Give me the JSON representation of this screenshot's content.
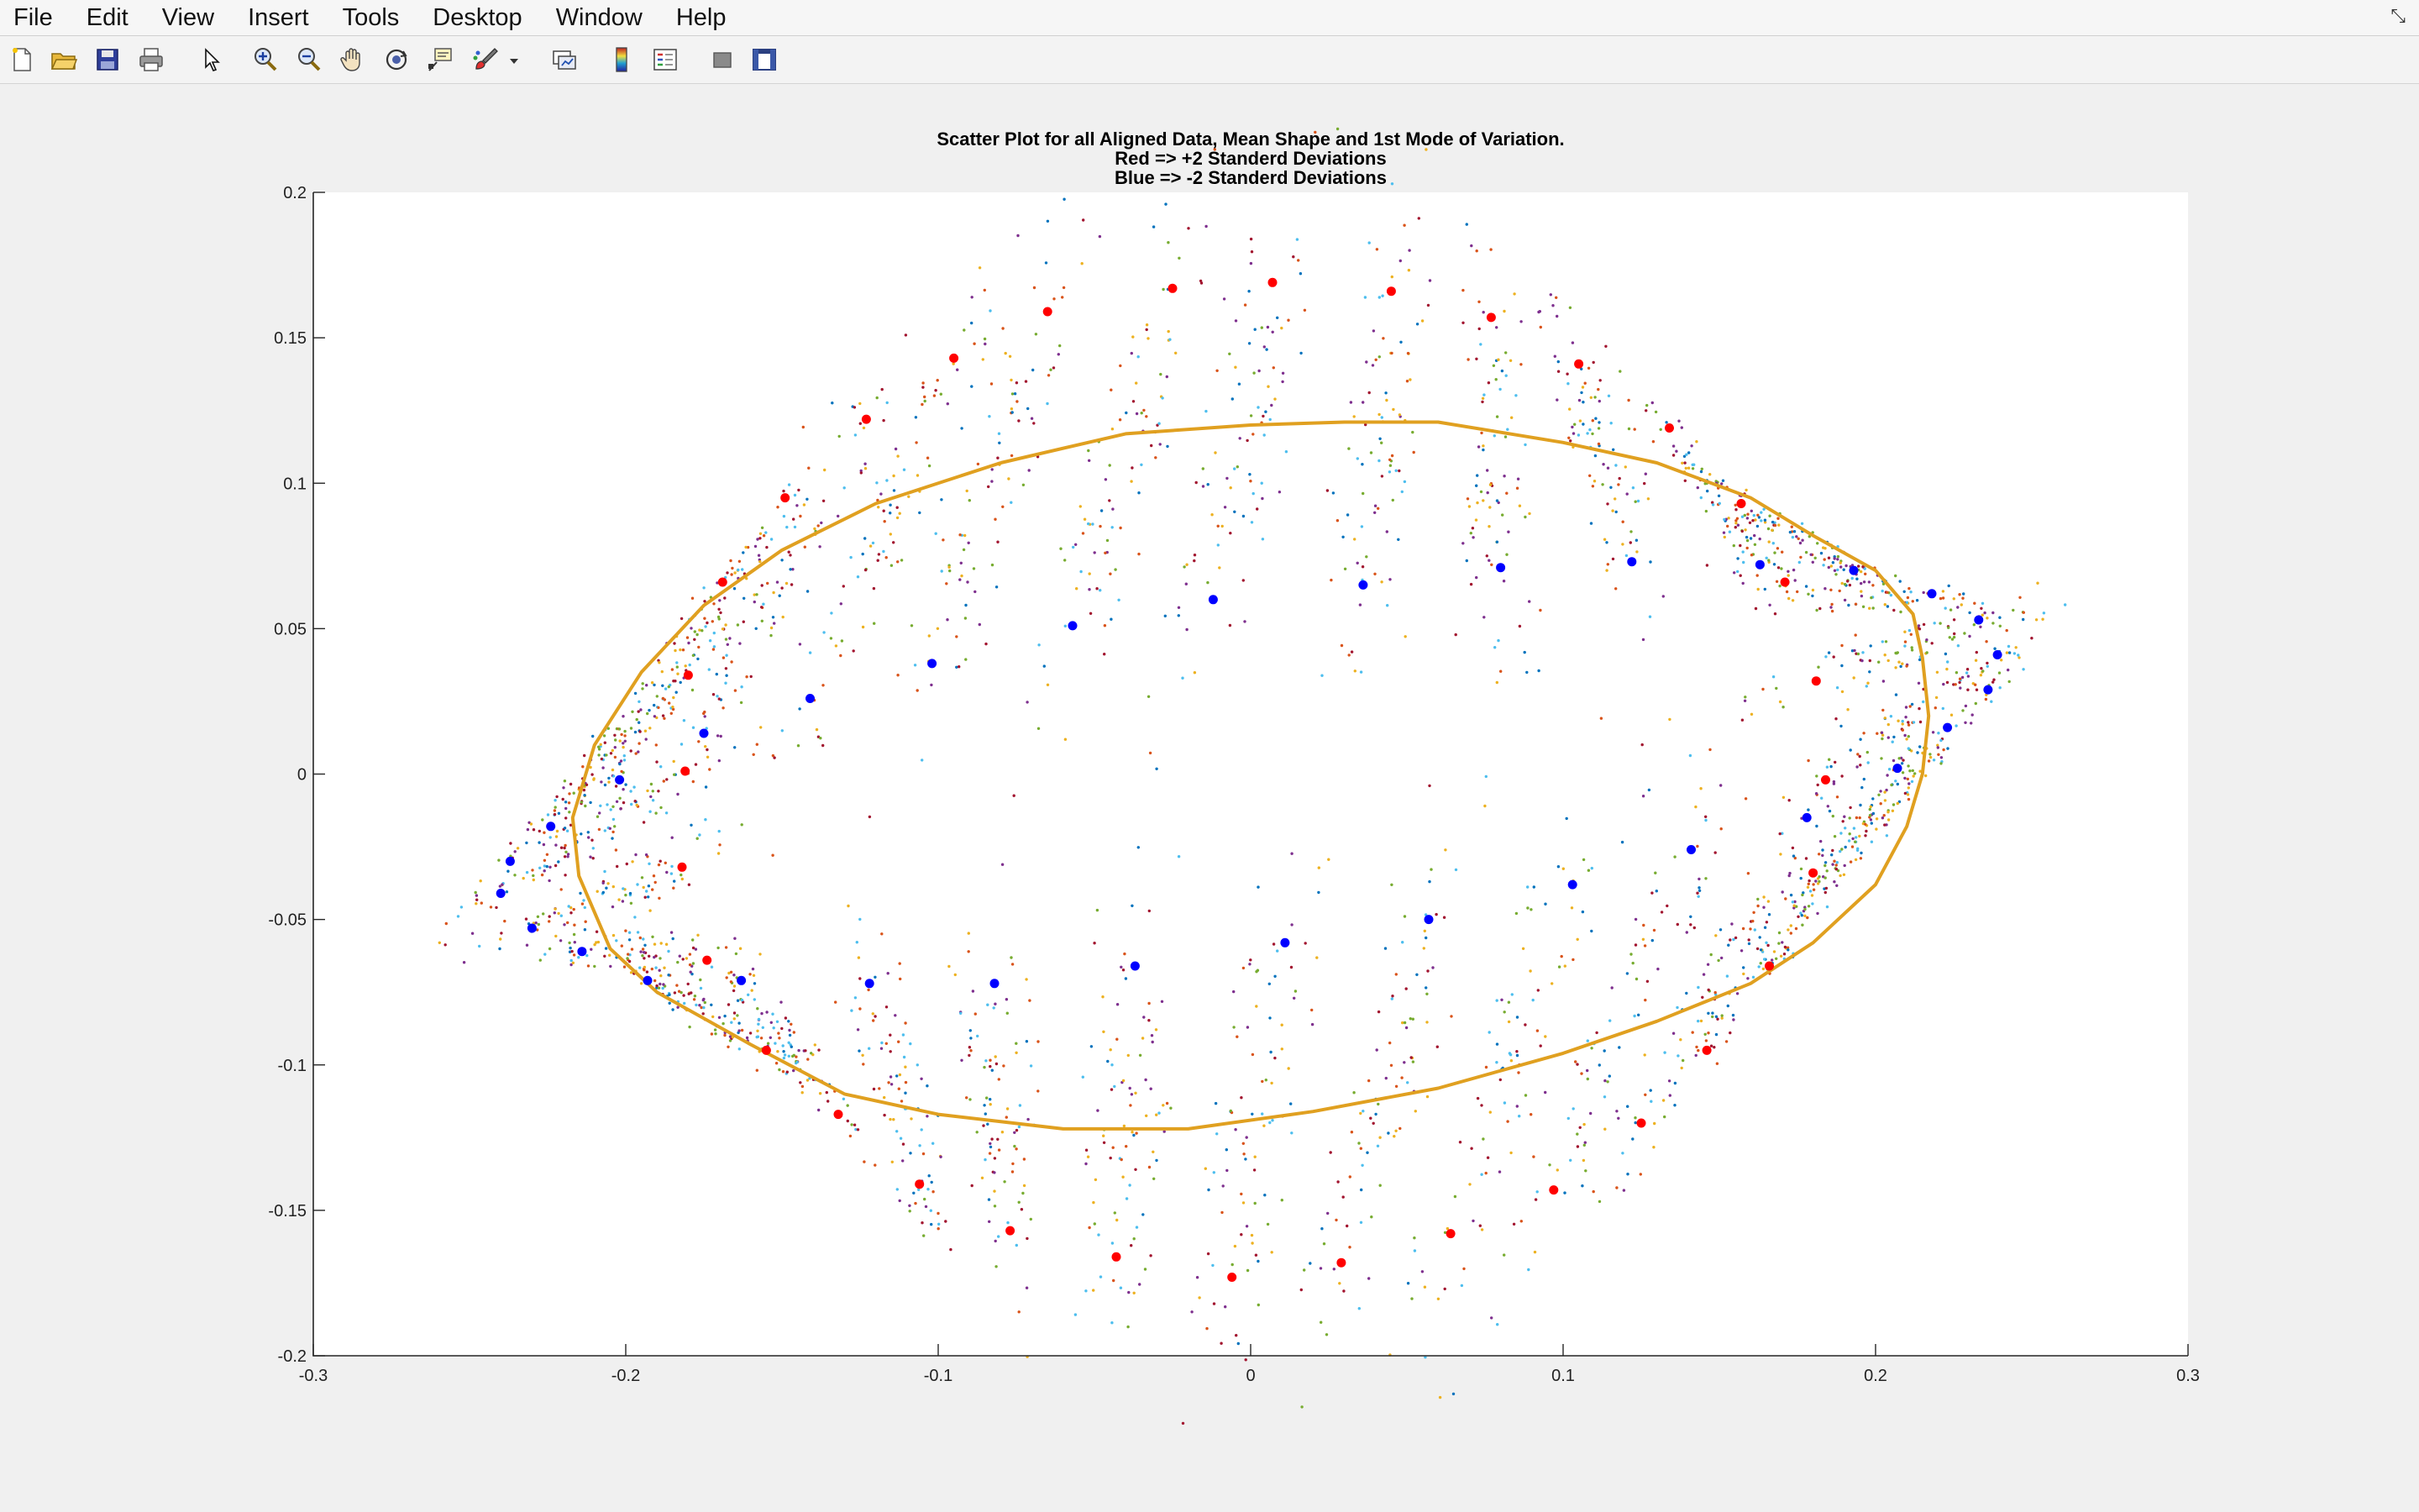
{
  "menubar": {
    "items": [
      "File",
      "Edit",
      "View",
      "Insert",
      "Tools",
      "Desktop",
      "Window",
      "Help"
    ],
    "right_glyph": "⤡"
  },
  "toolbar": {
    "icons": [
      "new-figure-icon",
      "open-file-icon",
      "save-icon",
      "print-icon",
      "edit-plot-arrow-icon",
      "zoom-in-icon",
      "zoom-out-icon",
      "pan-hand-icon",
      "rotate-3d-icon",
      "data-cursor-icon",
      "brush-icon",
      "brush-dropdown-icon",
      "link-plot-icon",
      "insert-colorbar-icon",
      "insert-legend-icon",
      "hide-plot-tools-icon",
      "show-plot-tools-icon"
    ]
  },
  "chart_data": {
    "type": "scatter",
    "title_lines": [
      "Scatter Plot for all Aligned Data, Mean Shape and 1st Mode of Variation.",
      "Red => +2 Standerd Deviations",
      "Blue => -2 Standerd Deviations"
    ],
    "xlim": [
      -0.3,
      0.3
    ],
    "ylim": [
      -0.2,
      0.2
    ],
    "xticks": [
      -0.3,
      -0.2,
      -0.1,
      0,
      0.1,
      0.2,
      0.3
    ],
    "xtick_labels": [
      "-0.3",
      "-0.2",
      "-0.1",
      "0",
      "0.1",
      "0.2",
      "0.3"
    ],
    "yticks": [
      -0.2,
      -0.15,
      -0.1,
      -0.05,
      0,
      0.05,
      0.1,
      0.15,
      0.2
    ],
    "ytick_labels": [
      "-0.2",
      "-0.15",
      "-0.1",
      "-0.05",
      "0",
      "0.05",
      "0.1",
      "0.15",
      "0.2"
    ],
    "grid": false,
    "colors": {
      "mean_shape": "#e0a020",
      "plus_2sd": "#ff0000",
      "minus_2sd": "#0000ff",
      "scatter_palette": [
        "#d95319",
        "#edb120",
        "#7e2f8e",
        "#77ac30",
        "#4dbeee",
        "#a2142f",
        "#0072bd"
      ]
    },
    "series": [
      {
        "role": "mean-shape",
        "style": "line",
        "points": [
          [
            -0.08,
            0.107
          ],
          [
            -0.04,
            0.117
          ],
          [
            0.0,
            0.12
          ],
          [
            0.03,
            0.121
          ],
          [
            0.06,
            0.121
          ],
          [
            0.1,
            0.114
          ],
          [
            0.13,
            0.107
          ],
          [
            0.16,
            0.095
          ],
          [
            0.18,
            0.082
          ],
          [
            0.2,
            0.07
          ],
          [
            0.212,
            0.055
          ],
          [
            0.215,
            0.04
          ],
          [
            0.217,
            0.02
          ],
          [
            0.215,
            0.0
          ],
          [
            0.21,
            -0.018
          ],
          [
            0.2,
            -0.038
          ],
          [
            0.18,
            -0.058
          ],
          [
            0.16,
            -0.072
          ],
          [
            0.13,
            -0.085
          ],
          [
            0.1,
            -0.096
          ],
          [
            0.06,
            -0.108
          ],
          [
            0.02,
            -0.116
          ],
          [
            -0.02,
            -0.122
          ],
          [
            -0.06,
            -0.122
          ],
          [
            -0.1,
            -0.117
          ],
          [
            -0.13,
            -0.11
          ],
          [
            -0.16,
            -0.093
          ],
          [
            -0.19,
            -0.075
          ],
          [
            -0.205,
            -0.06
          ],
          [
            -0.215,
            -0.035
          ],
          [
            -0.217,
            -0.015
          ],
          [
            -0.21,
            0.01
          ],
          [
            -0.195,
            0.035
          ],
          [
            -0.175,
            0.058
          ],
          [
            -0.15,
            0.077
          ],
          [
            -0.12,
            0.093
          ],
          [
            -0.08,
            0.107
          ]
        ]
      },
      {
        "role": "plus-2-standard-deviations",
        "style": "markers",
        "points": [
          [
            -0.025,
            0.167
          ],
          [
            0.007,
            0.169
          ],
          [
            0.045,
            0.166
          ],
          [
            0.077,
            0.157
          ],
          [
            0.105,
            0.141
          ],
          [
            0.134,
            0.119
          ],
          [
            0.157,
            0.093
          ],
          [
            0.171,
            0.066
          ],
          [
            0.181,
            0.032
          ],
          [
            0.184,
            -0.002
          ],
          [
            0.18,
            -0.034
          ],
          [
            0.166,
            -0.066
          ],
          [
            0.146,
            -0.095
          ],
          [
            0.125,
            -0.12
          ],
          [
            0.097,
            -0.143
          ],
          [
            0.064,
            -0.158
          ],
          [
            0.029,
            -0.168
          ],
          [
            -0.006,
            -0.173
          ],
          [
            -0.043,
            -0.166
          ],
          [
            -0.077,
            -0.157
          ],
          [
            -0.106,
            -0.141
          ],
          [
            -0.132,
            -0.117
          ],
          [
            -0.155,
            -0.095
          ],
          [
            -0.174,
            -0.064
          ],
          [
            -0.182,
            -0.032
          ],
          [
            -0.181,
            0.001
          ],
          [
            -0.18,
            0.034
          ],
          [
            -0.169,
            0.066
          ],
          [
            -0.149,
            0.095
          ],
          [
            -0.123,
            0.122
          ],
          [
            -0.095,
            0.143
          ],
          [
            -0.065,
            0.159
          ]
        ]
      },
      {
        "role": "minus-2-standard-deviations",
        "style": "markers",
        "points": [
          [
            -0.057,
            0.051
          ],
          [
            -0.012,
            0.06
          ],
          [
            0.036,
            0.065
          ],
          [
            0.08,
            0.071
          ],
          [
            0.122,
            0.073
          ],
          [
            0.163,
            0.072
          ],
          [
            0.193,
            0.07
          ],
          [
            0.218,
            0.062
          ],
          [
            0.233,
            0.053
          ],
          [
            0.239,
            0.041
          ],
          [
            0.236,
            0.029
          ],
          [
            0.223,
            0.016
          ],
          [
            0.207,
            0.002
          ],
          [
            0.178,
            -0.015
          ],
          [
            0.141,
            -0.026
          ],
          [
            0.103,
            -0.038
          ],
          [
            0.057,
            -0.05
          ],
          [
            0.011,
            -0.058
          ],
          [
            -0.037,
            -0.066
          ],
          [
            -0.082,
            -0.072
          ],
          [
            -0.122,
            -0.072
          ],
          [
            -0.163,
            -0.071
          ],
          [
            -0.193,
            -0.071
          ],
          [
            -0.214,
            -0.061
          ],
          [
            -0.23,
            -0.053
          ],
          [
            -0.24,
            -0.041
          ],
          [
            -0.237,
            -0.03
          ],
          [
            -0.224,
            -0.018
          ],
          [
            -0.202,
            -0.002
          ],
          [
            -0.175,
            0.014
          ],
          [
            -0.141,
            0.026
          ],
          [
            -0.102,
            0.038
          ]
        ]
      },
      {
        "role": "all-aligned-data",
        "style": "dots",
        "generated": "dense cloud of small multi-colored dots around each landmark between the -2SD and +2SD shapes"
      }
    ]
  }
}
